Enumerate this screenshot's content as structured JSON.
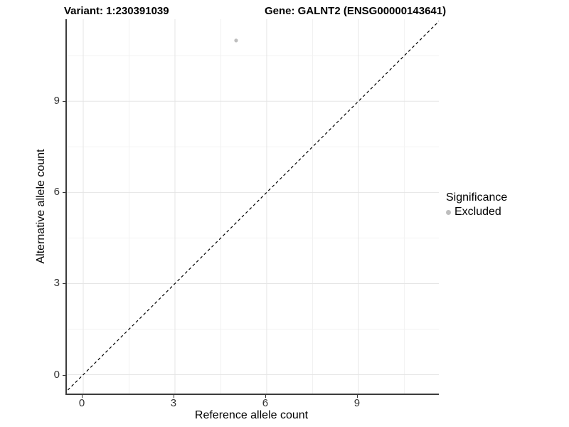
{
  "header": {
    "title_left": "Variant: 1:230391039",
    "title_right": "Gene: GALNT2 (ENSG00000143641)"
  },
  "axes": {
    "x_label": "Reference allele count",
    "y_label": "Alternative allele count"
  },
  "legend": {
    "title": "Significance",
    "entries": [
      {
        "label": "Excluded",
        "color": "#bebebe"
      }
    ]
  },
  "chart_data": {
    "type": "scatter",
    "title": "Variant: 1:230391039 / Gene: GALNT2 (ENSG00000143641)",
    "xlabel": "Reference allele count",
    "ylabel": "Alternative allele count",
    "xlim": [
      -0.535,
      11.63
    ],
    "ylim": [
      -0.62,
      11.7
    ],
    "x_ticks": [
      0,
      3,
      6,
      9
    ],
    "y_ticks": [
      0,
      3,
      6,
      9
    ],
    "x_minor_ticks": [
      1.5,
      4.5,
      7.5,
      10.5
    ],
    "y_minor_ticks": [
      1.5,
      4.5,
      7.5,
      10.5
    ],
    "grid": true,
    "grid_major_color": "#e5e5e5",
    "grid_minor_color": "#f2f2f2",
    "reference_line": {
      "type": "identity",
      "style": "dashed",
      "color": "#000000"
    },
    "series": [
      {
        "name": "Excluded",
        "color": "#bebebe",
        "points": [
          {
            "x": 5,
            "y": 11
          }
        ]
      }
    ],
    "legend_position": "right"
  }
}
